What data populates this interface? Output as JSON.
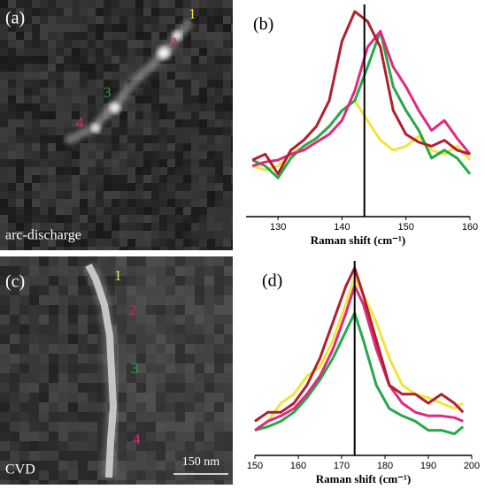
{
  "chart_data": [
    {
      "type": "line",
      "panel_label": "(b)",
      "x_label": "Raman shift (cm⁻¹)",
      "x": [
        126,
        128,
        130,
        132,
        134,
        136,
        138,
        140,
        142,
        144,
        146,
        148,
        150,
        152,
        154,
        156,
        158,
        160
      ],
      "xlim": [
        125,
        160
      ],
      "xticks": [
        130,
        140,
        150,
        160
      ],
      "ylim": [
        0,
        1
      ],
      "vline": 143.5,
      "series": [
        {
          "color": "#f2e43a",
          "values": [
            0.22,
            0.2,
            0.22,
            0.28,
            0.32,
            0.36,
            0.42,
            0.5,
            0.55,
            0.45,
            0.35,
            0.3,
            0.32,
            0.37,
            0.3,
            0.28,
            0.32,
            0.25
          ]
        },
        {
          "color": "#27a84a",
          "values": [
            0.25,
            0.22,
            0.16,
            0.26,
            0.32,
            0.36,
            0.42,
            0.5,
            0.55,
            0.72,
            0.9,
            0.62,
            0.5,
            0.4,
            0.26,
            0.3,
            0.26,
            0.18
          ]
        },
        {
          "color": "#e0297f",
          "values": [
            0.22,
            0.24,
            0.25,
            0.28,
            0.3,
            0.34,
            0.38,
            0.45,
            0.6,
            0.82,
            0.9,
            0.72,
            0.62,
            0.5,
            0.4,
            0.45,
            0.36,
            0.28
          ]
        },
        {
          "color": "#b11f2e",
          "values": [
            0.25,
            0.28,
            0.18,
            0.3,
            0.35,
            0.42,
            0.55,
            0.85,
            1.0,
            0.95,
            0.82,
            0.5,
            0.38,
            0.34,
            0.32,
            0.35,
            0.3,
            0.28
          ]
        }
      ]
    },
    {
      "type": "line",
      "panel_label": "(d)",
      "x_label": "Raman shift (cm⁻¹)",
      "x": [
        150,
        153,
        156,
        159,
        162,
        165,
        168,
        171,
        173,
        175,
        178,
        181,
        184,
        187,
        190,
        193,
        196,
        198
      ],
      "xlim": [
        150,
        200
      ],
      "xticks": [
        150,
        160,
        170,
        180,
        190,
        200
      ],
      "ylim": [
        0,
        1
      ],
      "vline": 173,
      "series": [
        {
          "color": "#f2e43a",
          "values": [
            0.1,
            0.15,
            0.25,
            0.3,
            0.4,
            0.45,
            0.6,
            0.8,
            0.95,
            0.85,
            0.7,
            0.5,
            0.35,
            0.3,
            0.28,
            0.25,
            0.22,
            0.25
          ]
        },
        {
          "color": "#27a84a",
          "values": [
            0.1,
            0.12,
            0.15,
            0.2,
            0.28,
            0.38,
            0.5,
            0.65,
            0.75,
            0.6,
            0.35,
            0.22,
            0.18,
            0.15,
            0.1,
            0.1,
            0.08,
            0.12
          ]
        },
        {
          "color": "#e0297f",
          "values": [
            0.1,
            0.15,
            0.18,
            0.22,
            0.3,
            0.4,
            0.55,
            0.75,
            0.9,
            0.8,
            0.55,
            0.35,
            0.25,
            0.2,
            0.18,
            0.18,
            0.17,
            0.15
          ]
        },
        {
          "color": "#b11f2e",
          "values": [
            0.15,
            0.2,
            0.2,
            0.25,
            0.35,
            0.5,
            0.7,
            0.9,
            1.0,
            0.85,
            0.6,
            0.35,
            0.3,
            0.3,
            0.25,
            0.3,
            0.25,
            0.2
          ]
        }
      ]
    }
  ],
  "images": [
    {
      "panel_label": "(a)",
      "caption": "arc-discharge",
      "markers": [
        {
          "label": "1",
          "color": "#f2e43a"
        },
        {
          "label": "2",
          "color": "#d0284a"
        },
        {
          "label": "3",
          "color": "#27a84a"
        },
        {
          "label": "4",
          "color": "#e0297f"
        }
      ]
    },
    {
      "panel_label": "(c)",
      "caption": "CVD",
      "scale_bar": "150 nm",
      "markers": [
        {
          "label": "1",
          "color": "#f2e43a"
        },
        {
          "label": "2",
          "color": "#d0284a"
        },
        {
          "label": "3",
          "color": "#27a84a"
        },
        {
          "label": "4",
          "color": "#e0297f"
        }
      ]
    }
  ]
}
